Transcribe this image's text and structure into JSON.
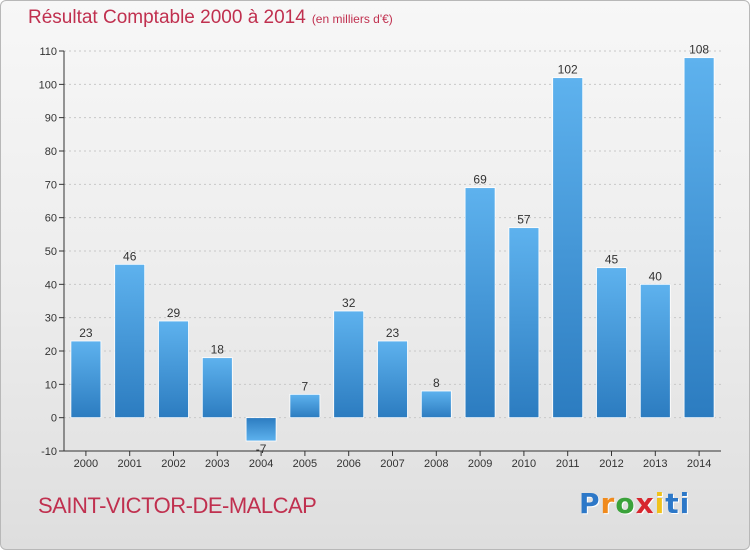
{
  "header": {
    "title": "Résultat Comptable 2000 à 2014",
    "subtitle": "(en milliers d'€)"
  },
  "footer": {
    "commune": "SAINT-VICTOR-DE-MALCAP",
    "logo_text": "Proxiti"
  },
  "colors": {
    "title": "#c0304f",
    "bar_light": "#5aaeea",
    "bar_dark": "#2f7fc4",
    "axis": "#333333"
  },
  "chart_data": {
    "type": "bar",
    "categories": [
      "2000",
      "2001",
      "2002",
      "2003",
      "2004",
      "2005",
      "2006",
      "2007",
      "2008",
      "2009",
      "2010",
      "2011",
      "2012",
      "2013",
      "2014"
    ],
    "values": [
      23,
      46,
      29,
      18,
      -7,
      7,
      32,
      23,
      8,
      69,
      57,
      102,
      45,
      40,
      108
    ],
    "ylim": [
      -10,
      110
    ],
    "yticks": [
      -10,
      0,
      10,
      20,
      30,
      40,
      50,
      60,
      70,
      80,
      90,
      100,
      110
    ],
    "grid": true,
    "data_labels": true
  }
}
